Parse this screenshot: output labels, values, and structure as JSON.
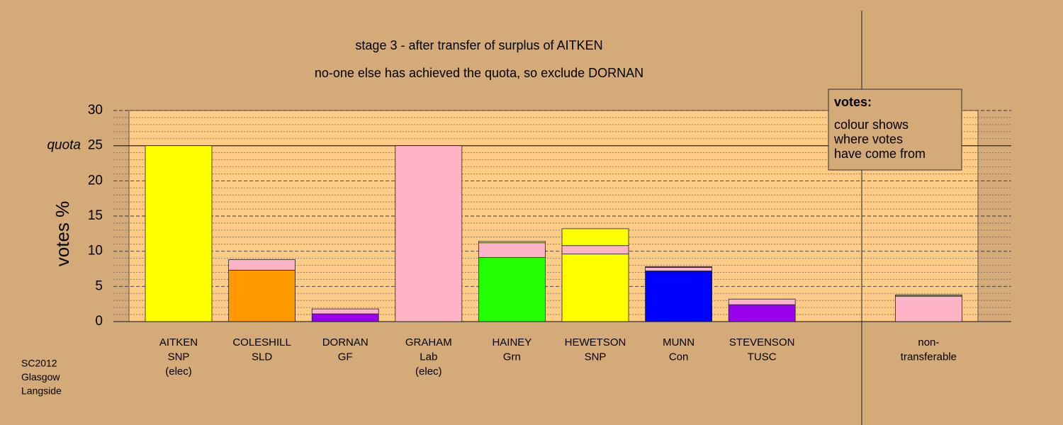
{
  "chart_data": {
    "type": "stacked_bar",
    "title": "stage 3 - after transfer of surplus of AITKEN",
    "subtitle": "no-one else has achieved the quota, so exclude DORNAN",
    "y_label": "votes %",
    "ylim": [
      0,
      30
    ],
    "yticks": [
      0,
      5,
      10,
      15,
      20,
      25,
      30
    ],
    "quota": 25,
    "quota_label": "quota",
    "categories": [
      [
        "AITKEN",
        "SNP",
        "(elec)"
      ],
      [
        "COLESHILL",
        "SLD"
      ],
      [
        "DORNAN",
        "GF"
      ],
      [
        "GRAHAM",
        "Lab",
        "(elec)"
      ],
      [
        "HAINEY",
        "Grn"
      ],
      [
        "HEWETSON",
        "SNP"
      ],
      [
        "MUNN",
        "Con"
      ],
      [
        "STEVENSON",
        "TUSC"
      ],
      null,
      [
        "non-",
        "transferable"
      ]
    ],
    "stacks": [
      [
        {
          "value": 25,
          "color": "#ffff00"
        }
      ],
      [
        {
          "value": 7.3,
          "color": "#ff9900"
        },
        {
          "value": 1.5,
          "color": "#ffb3c6"
        }
      ],
      [
        {
          "value": 1.1,
          "color": "#9900ee"
        },
        {
          "value": 0.7,
          "color": "#ffb3c6"
        }
      ],
      [
        {
          "value": 25,
          "color": "#ffb3c6"
        }
      ],
      [
        {
          "value": 9.1,
          "color": "#22ff00"
        },
        {
          "value": 2.1,
          "color": "#ffb3c6"
        },
        {
          "value": 0.2,
          "color": "#ffff00"
        }
      ],
      [
        {
          "value": 9.6,
          "color": "#ffff00"
        },
        {
          "value": 1.2,
          "color": "#ffb3c6"
        },
        {
          "value": 2.4,
          "color": "#ffff00"
        }
      ],
      [
        {
          "value": 7.2,
          "color": "#0000ff"
        },
        {
          "value": 0.5,
          "color": "#ffb3c6"
        },
        {
          "value": 0.1,
          "color": "#9900ee"
        }
      ],
      [
        {
          "value": 2.4,
          "color": "#9900ee"
        },
        {
          "value": 0.8,
          "color": "#ffb3c6"
        }
      ],
      [],
      [
        {
          "value": 3.6,
          "color": "#ffb3c6"
        },
        {
          "value": 0.2,
          "color": "#999933"
        }
      ]
    ],
    "legend": {
      "title": "votes:",
      "lines": [
        "colour shows",
        "where votes",
        "have come from"
      ]
    },
    "footnote": [
      "SC2012",
      "Glasgow",
      "Langside"
    ]
  }
}
